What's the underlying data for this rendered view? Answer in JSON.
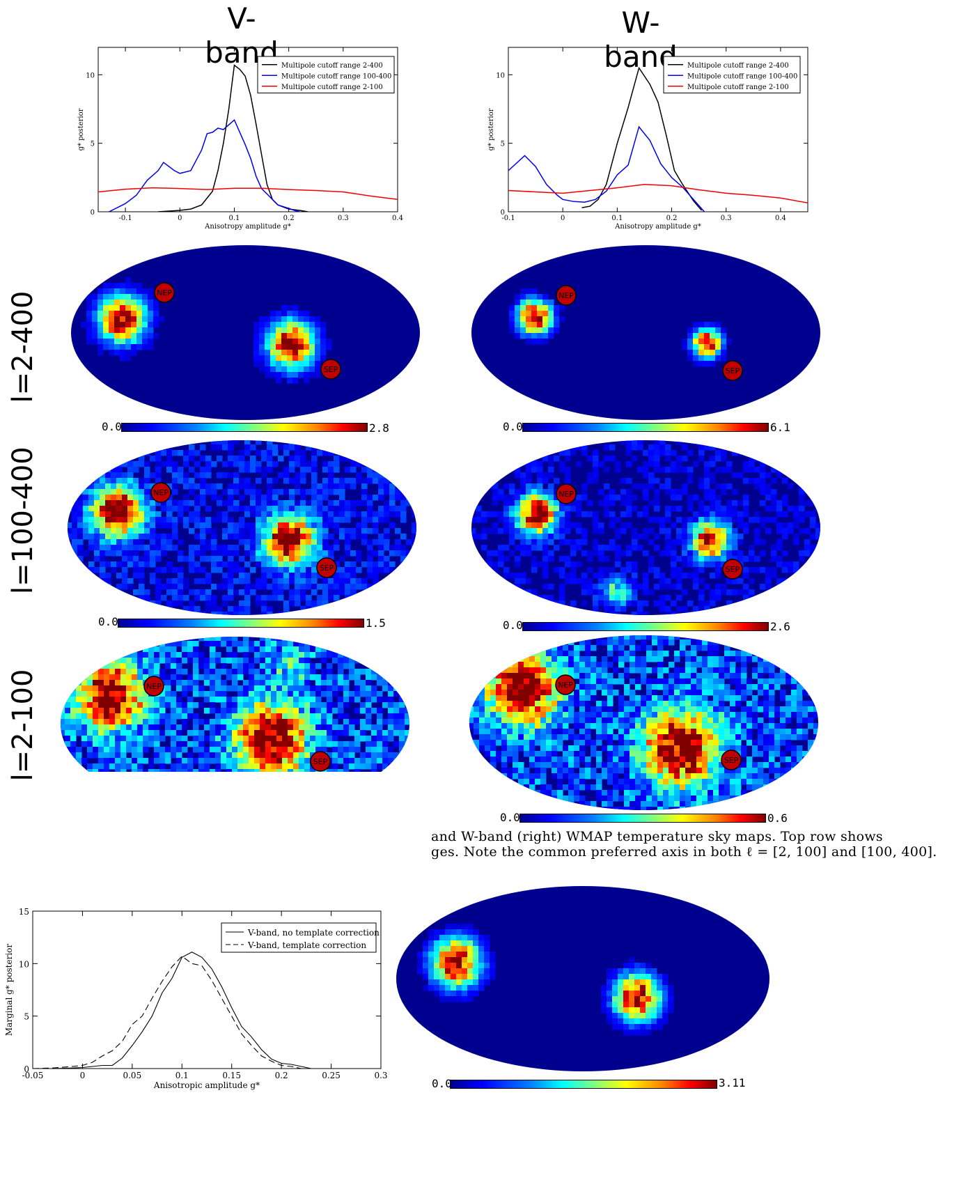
{
  "headers": {
    "v_band": "V-band",
    "w_band": "W-band"
  },
  "row_labels": {
    "r1": "l=2-400",
    "r2": "l=100-400",
    "r3": "l=2-100"
  },
  "pole_labels": {
    "north": "NEP",
    "south": "SEP"
  },
  "colorbars": {
    "v1": {
      "min": "0.0",
      "max": "2.8"
    },
    "w1": {
      "min": "0.0",
      "max": "6.1"
    },
    "v2": {
      "min": "0.0",
      "max": "1.5"
    },
    "w2": {
      "min": "0.0",
      "max": "2.6"
    },
    "w3": {
      "min": "0.0",
      "max": "0.6"
    },
    "bottom": {
      "min": "0.0",
      "max": "3.11"
    }
  },
  "caption": {
    "line1": "and W-band (right) WMAP temperature sky maps.  Top row shows",
    "line2": "ges.  Note the common preferred axis in both ℓ = [2, 100] and [100, 400]."
  },
  "colors": {
    "black": "#000000",
    "blue": "#0000ee",
    "red": "#ee0000",
    "map_bg": "#00008f",
    "pole": "#c00000"
  },
  "chart_data": [
    {
      "type": "line",
      "title": "",
      "xlabel": "Anisotropy amplitude g*",
      "ylabel": "g* posterior",
      "xlim": [
        -0.15,
        0.4
      ],
      "ylim": [
        0,
        12
      ],
      "xticks": [
        "-0.1",
        "0",
        "0.1",
        "0.2",
        "0.3",
        "0.4"
      ],
      "yticks": [
        "0",
        "5",
        "10"
      ],
      "legend_position": "top-right",
      "series": [
        {
          "name": "Multipole cutoff range 2-400",
          "color": "#000000",
          "x": [
            -0.04,
            -0.02,
            0.0,
            0.02,
            0.04,
            0.06,
            0.07,
            0.08,
            0.09,
            0.1,
            0.11,
            0.12,
            0.13,
            0.14,
            0.15,
            0.16,
            0.17,
            0.18,
            0.2,
            0.22,
            0.235
          ],
          "y": [
            0,
            0.05,
            0.1,
            0.2,
            0.5,
            1.5,
            3.0,
            5.0,
            7.5,
            10.7,
            10.4,
            9.9,
            8.5,
            6.4,
            4.2,
            2.0,
            0.9,
            0.5,
            0.2,
            0.1,
            0
          ]
        },
        {
          "name": "Multipole cutoff range 100-400",
          "color": "#0000ee",
          "x": [
            -0.13,
            -0.1,
            -0.08,
            -0.06,
            -0.04,
            -0.03,
            -0.01,
            0.0,
            0.02,
            0.04,
            0.05,
            0.06,
            0.07,
            0.08,
            0.1,
            0.12,
            0.13,
            0.14,
            0.15,
            0.16,
            0.17,
            0.18,
            0.2,
            0.21,
            0.22
          ],
          "y": [
            0,
            0.6,
            1.2,
            2.3,
            3.0,
            3.6,
            3.0,
            2.8,
            3.0,
            4.5,
            5.7,
            5.8,
            6.1,
            6.0,
            6.7,
            4.9,
            3.9,
            2.6,
            1.7,
            1.3,
            0.9,
            0.5,
            0.25,
            0.1,
            0
          ]
        },
        {
          "name": "Multipole cutoff range 2-100",
          "color": "#ee0000",
          "x": [
            -0.15,
            -0.1,
            -0.05,
            0.0,
            0.05,
            0.1,
            0.15,
            0.2,
            0.25,
            0.3,
            0.35,
            0.4
          ],
          "y": [
            1.45,
            1.65,
            1.75,
            1.7,
            1.62,
            1.72,
            1.72,
            1.62,
            1.55,
            1.45,
            1.15,
            0.9
          ]
        }
      ]
    },
    {
      "type": "line",
      "title": "",
      "xlabel": "Anisotropy amplitude g*",
      "ylabel": "g* posterior",
      "xlim": [
        -0.1,
        0.45
      ],
      "ylim": [
        0,
        12
      ],
      "xticks": [
        "-0.1",
        "0",
        "0.1",
        "0.2",
        "0.3",
        "0.4"
      ],
      "yticks": [
        "0",
        "5",
        "10"
      ],
      "legend_position": "top-right",
      "series": [
        {
          "name": "Multipole cutoff range 2-400",
          "color": "#000000",
          "x": [
            0.035,
            0.05,
            0.065,
            0.08,
            0.1,
            0.12,
            0.14,
            0.16,
            0.175,
            0.19,
            0.205,
            0.22,
            0.24,
            0.255
          ],
          "y": [
            0.3,
            0.4,
            0.9,
            2.0,
            5.0,
            7.6,
            10.5,
            9.3,
            8.0,
            5.6,
            3.0,
            2.0,
            0.8,
            0.1
          ]
        },
        {
          "name": "Multipole cutoff range 100-400",
          "color": "#0000ee",
          "x": [
            -0.1,
            -0.07,
            -0.05,
            -0.03,
            -0.01,
            0.0,
            0.02,
            0.04,
            0.06,
            0.08,
            0.1,
            0.12,
            0.14,
            0.16,
            0.18,
            0.2,
            0.22,
            0.24,
            0.26
          ],
          "y": [
            3.0,
            4.1,
            3.3,
            2.0,
            1.2,
            0.9,
            0.75,
            0.7,
            0.9,
            1.5,
            2.7,
            3.4,
            6.2,
            5.2,
            3.5,
            2.5,
            1.8,
            0.9,
            0.0
          ]
        },
        {
          "name": "Multipole cutoff range 2-100",
          "color": "#ee0000",
          "x": [
            -0.1,
            -0.05,
            0.0,
            0.05,
            0.1,
            0.15,
            0.2,
            0.25,
            0.3,
            0.35,
            0.4,
            0.45
          ],
          "y": [
            1.55,
            1.45,
            1.35,
            1.55,
            1.75,
            2.0,
            1.9,
            1.6,
            1.35,
            1.2,
            1.0,
            0.65
          ]
        }
      ]
    },
    {
      "type": "line",
      "title": "",
      "xlabel": "Anisotropic amplitude g*",
      "ylabel": "Marginal g* posterior",
      "xlim": [
        -0.05,
        0.3
      ],
      "ylim": [
        0,
        15
      ],
      "xticks": [
        "-0.05",
        "0",
        "0.05",
        "0.1",
        "0.15",
        "0.2",
        "0.25",
        "0.3"
      ],
      "yticks": [
        "0",
        "5",
        "10",
        "15"
      ],
      "legend_position": "top-right",
      "series": [
        {
          "name": "V-band, no template correction",
          "style": "solid",
          "x": [
            -0.05,
            -0.03,
            -0.01,
            0.0,
            0.01,
            0.02,
            0.03,
            0.04,
            0.05,
            0.06,
            0.07,
            0.08,
            0.09,
            0.1,
            0.11,
            0.12,
            0.13,
            0.14,
            0.15,
            0.16,
            0.17,
            0.18,
            0.19,
            0.2,
            0.21,
            0.22,
            0.23
          ],
          "y": [
            0,
            0,
            0.05,
            0.1,
            0.2,
            0.3,
            0.3,
            1.0,
            2.2,
            3.5,
            5.0,
            7.2,
            8.6,
            10.6,
            11.1,
            10.6,
            9.5,
            7.8,
            5.8,
            4.0,
            3.0,
            1.8,
            0.9,
            0.5,
            0.4,
            0.2,
            0
          ]
        },
        {
          "name": "V-band, template correction",
          "style": "dashed",
          "x": [
            -0.05,
            -0.03,
            -0.01,
            0.0,
            0.01,
            0.02,
            0.03,
            0.04,
            0.05,
            0.06,
            0.07,
            0.08,
            0.09,
            0.1,
            0.11,
            0.12,
            0.13,
            0.14,
            0.15,
            0.16,
            0.17,
            0.18,
            0.19,
            0.2,
            0.21,
            0.22
          ],
          "y": [
            0,
            0.05,
            0.2,
            0.3,
            0.6,
            1.2,
            1.7,
            2.6,
            4.2,
            5.0,
            6.7,
            8.3,
            9.7,
            10.7,
            10.0,
            9.8,
            8.4,
            6.7,
            5.0,
            3.3,
            2.2,
            1.2,
            0.7,
            0.3,
            0.2,
            0
          ]
        }
      ]
    }
  ]
}
